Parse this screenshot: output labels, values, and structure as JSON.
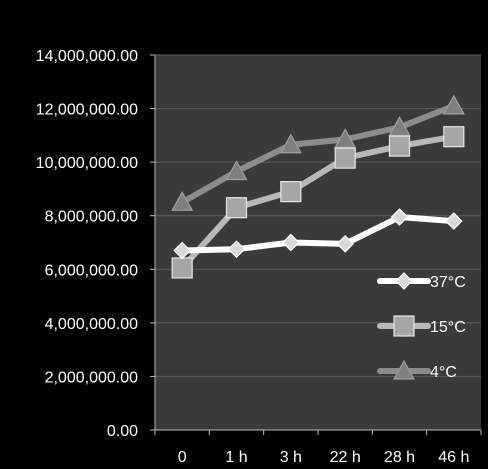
{
  "chart_data": {
    "type": "line",
    "title": "",
    "xlabel": "",
    "ylabel": "",
    "categories": [
      "0",
      "1 h",
      "3 h",
      "22 h",
      "28 h",
      "46 h"
    ],
    "ylim": [
      0,
      14000000
    ],
    "yticks": [
      "0.00",
      "2,000,000.00",
      "4,000,000.00",
      "6,000,000.00",
      "8,000,000.00",
      "10,000,000.00",
      "12,000,000.00",
      "14,000,000.00"
    ],
    "grid": true,
    "legend": "bottom-right",
    "series": [
      {
        "name": "37°C",
        "marker": "diamond",
        "color": "#ffffff",
        "values": [
          6700000,
          6750000,
          7000000,
          6950000,
          7950000,
          7800000
        ]
      },
      {
        "name": "15°C",
        "marker": "square",
        "color": "#b8b8b8",
        "values": [
          6050000,
          8300000,
          8900000,
          10150000,
          10600000,
          10950000
        ]
      },
      {
        "name": "4°C",
        "marker": "triangle",
        "color": "#8c8c8c",
        "values": [
          8500000,
          9650000,
          10650000,
          10850000,
          11300000,
          12100000
        ]
      }
    ],
    "colors": {
      "page_background": "#000000",
      "plot_background": "#3a3a3a",
      "gridline": "#5e5e5e",
      "text": "#ffffff"
    }
  }
}
